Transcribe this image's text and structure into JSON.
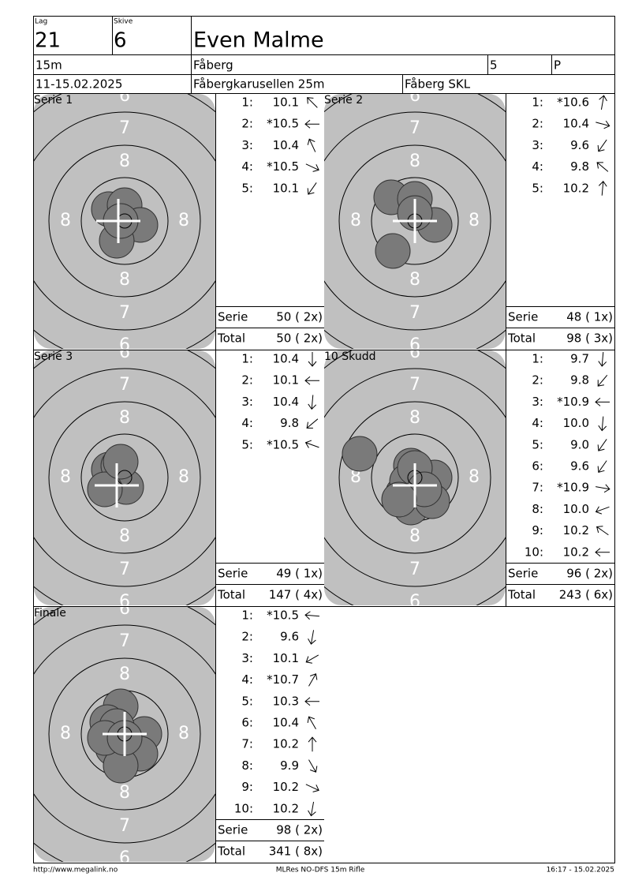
{
  "header": {
    "lag_label": "Lag",
    "lag": "21",
    "skive_label": "Skive",
    "skive": "6",
    "name": "Even Malme",
    "distance": "15m",
    "club": "Fåberg",
    "number": "5",
    "class": "P",
    "date": "11-15.02.2025",
    "event": "Fåbergkarusellen 25m",
    "organizer": "Fåberg SKL"
  },
  "target_labels": {
    "six": "6",
    "seven": "7",
    "eight": "8"
  },
  "panels": [
    {
      "title": "Serie 1",
      "shots": [
        {
          "number": "1:",
          "score": "10.1"
        },
        {
          "number": "2:",
          "score": "*10.5"
        },
        {
          "number": "3:",
          "score": "10.4"
        },
        {
          "number": "4:",
          "score": "*10.5"
        },
        {
          "number": "5:",
          "score": "10.1"
        }
      ],
      "serie_label": "Serie",
      "serie": "50 ( 2x)",
      "total_label": "Total",
      "total": "50 ( 2x)"
    },
    {
      "title": "Serie 2",
      "shots": [
        {
          "number": "1:",
          "score": "*10.6"
        },
        {
          "number": "2:",
          "score": "10.4"
        },
        {
          "number": "3:",
          "score": "9.6"
        },
        {
          "number": "4:",
          "score": "9.8"
        },
        {
          "number": "5:",
          "score": "10.2"
        }
      ],
      "serie_label": "Serie",
      "serie": "48 ( 1x)",
      "total_label": "Total",
      "total": "98 ( 3x)"
    },
    {
      "title": "Serie 3",
      "shots": [
        {
          "number": "1:",
          "score": "10.4"
        },
        {
          "number": "2:",
          "score": "10.1"
        },
        {
          "number": "3:",
          "score": "10.4"
        },
        {
          "number": "4:",
          "score": "9.8"
        },
        {
          "number": "5:",
          "score": "*10.5"
        }
      ],
      "serie_label": "Serie",
      "serie": "49 ( 1x)",
      "total_label": "Total",
      "total": "147 ( 4x)"
    },
    {
      "title": "10 Skudd",
      "shots": [
        {
          "number": "1:",
          "score": "9.7"
        },
        {
          "number": "2:",
          "score": "9.8"
        },
        {
          "number": "3:",
          "score": "*10.9"
        },
        {
          "number": "4:",
          "score": "10.0"
        },
        {
          "number": "5:",
          "score": "9.0"
        },
        {
          "number": "6:",
          "score": "9.6"
        },
        {
          "number": "7:",
          "score": "*10.9"
        },
        {
          "number": "8:",
          "score": "10.0"
        },
        {
          "number": "9:",
          "score": "10.2"
        },
        {
          "number": "10:",
          "score": "10.2"
        }
      ],
      "serie_label": "Serie",
      "serie": "96 ( 2x)",
      "total_label": "Total",
      "total": "243 ( 6x)"
    },
    {
      "title": "Finale",
      "shots": [
        {
          "number": "1:",
          "score": "*10.5"
        },
        {
          "number": "2:",
          "score": "9.6"
        },
        {
          "number": "3:",
          "score": "10.1"
        },
        {
          "number": "4:",
          "score": "*10.7"
        },
        {
          "number": "5:",
          "score": "10.3"
        },
        {
          "number": "6:",
          "score": "10.4"
        },
        {
          "number": "7:",
          "score": "10.2"
        },
        {
          "number": "8:",
          "score": "9.9"
        },
        {
          "number": "9:",
          "score": "10.2"
        },
        {
          "number": "10:",
          "score": "10.2"
        }
      ],
      "serie_label": "Serie",
      "serie": "98 ( 2x)",
      "total_label": "Total",
      "total": "341 ( 8x)"
    }
  ],
  "footer": {
    "url": "http://www.megalink.no",
    "software": "MLRes NO-DFS 15m Rifle",
    "timestamp": "16:17 - 15.02.2025"
  }
}
